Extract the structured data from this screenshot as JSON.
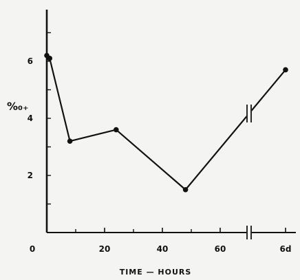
{
  "chart_data": {
    "type": "line",
    "title": "",
    "xlabel": "TIME — HOURS",
    "ylabel": "%₀₊",
    "x_tick_labels": [
      "0",
      "20",
      "40",
      "60",
      "6d"
    ],
    "y_tick_labels": [
      "2",
      "4",
      "6"
    ],
    "xlim": [
      0,
      78
    ],
    "ylim": [
      0,
      7.6
    ],
    "axis_break": "between 70 hours and 6 days, drawn on the x-axis and the line",
    "grid": false,
    "legend": "none",
    "series": [
      {
        "x": [
          0,
          1,
          8,
          24,
          48,
          "6d"
        ],
        "y": [
          6.2,
          6.1,
          3.2,
          3.6,
          1.5,
          5.7
        ]
      }
    ]
  }
}
